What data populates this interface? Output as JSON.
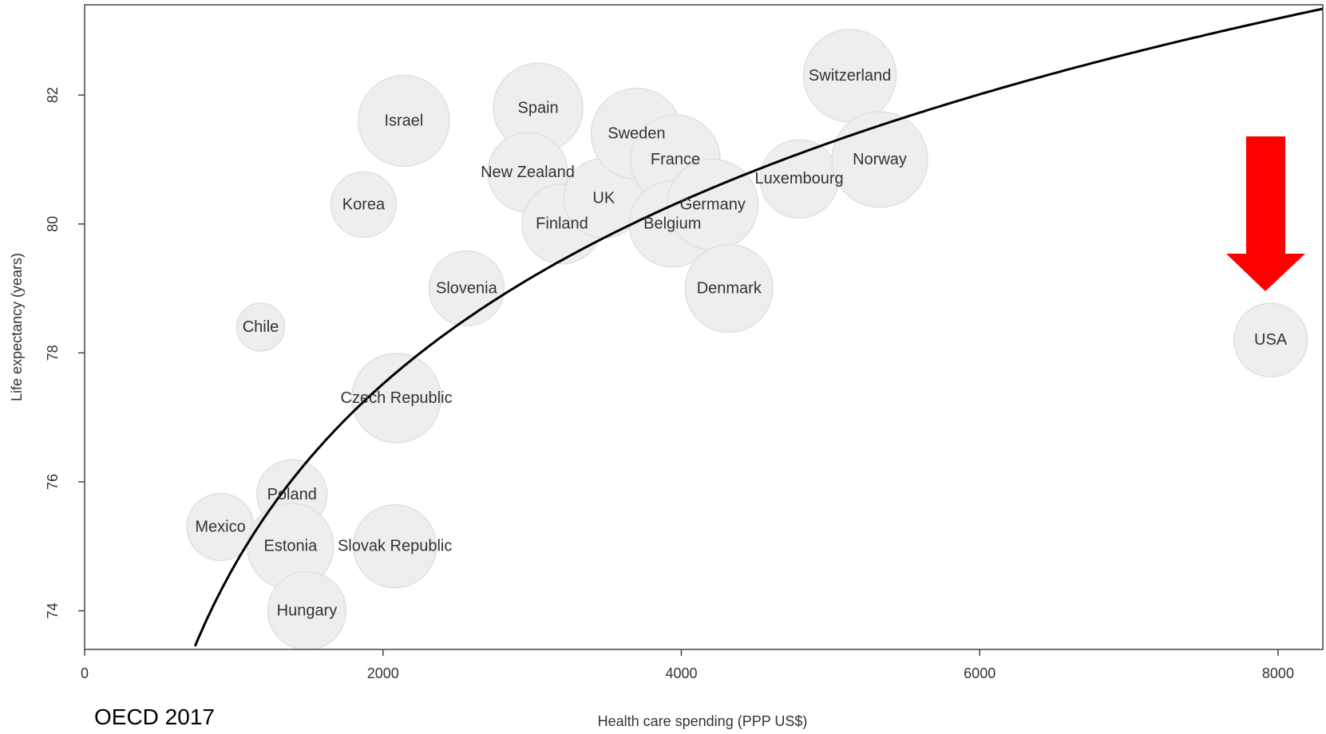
{
  "source_note": "OECD 2017",
  "chart_data": {
    "type": "scatter",
    "title": "",
    "xlabel": "Health care spending (PPP US$)",
    "ylabel": "Life expectancy (years)",
    "xlim": [
      0,
      8300
    ],
    "ylim": [
      73.4,
      83.4
    ],
    "xticks": [
      0,
      2000,
      4000,
      6000,
      8000
    ],
    "yticks": [
      74,
      76,
      78,
      80,
      82
    ],
    "grid": false,
    "legend": "none",
    "bubble_color": "#eeeeee",
    "highlight_color": "#ff0000",
    "points": [
      {
        "label": "Chile",
        "x": 1180,
        "y": 78.4,
        "r": 30
      },
      {
        "label": "Korea",
        "x": 1870,
        "y": 80.3,
        "r": 41
      },
      {
        "label": "Israel",
        "x": 2140,
        "y": 81.6,
        "r": 57
      },
      {
        "label": "Slovenia",
        "x": 2560,
        "y": 79.0,
        "r": 47
      },
      {
        "label": "Czech Republic",
        "x": 2090,
        "y": 77.3,
        "r": 56
      },
      {
        "label": "Mexico",
        "x": 910,
        "y": 75.3,
        "r": 42
      },
      {
        "label": "Poland",
        "x": 1390,
        "y": 75.8,
        "r": 44
      },
      {
        "label": "Estonia",
        "x": 1380,
        "y": 75.0,
        "r": 54
      },
      {
        "label": "Slovak Republic",
        "x": 2080,
        "y": 75.0,
        "r": 52
      },
      {
        "label": "Hungary",
        "x": 1490,
        "y": 74.0,
        "r": 49
      },
      {
        "label": "Spain",
        "x": 3040,
        "y": 81.8,
        "r": 56
      },
      {
        "label": "New Zealand",
        "x": 2970,
        "y": 80.8,
        "r": 50
      },
      {
        "label": "Finland",
        "x": 3200,
        "y": 80.0,
        "r": 50
      },
      {
        "label": "UK",
        "x": 3480,
        "y": 80.4,
        "r": 50
      },
      {
        "label": "Sweden",
        "x": 3700,
        "y": 81.4,
        "r": 57
      },
      {
        "label": "France",
        "x": 3960,
        "y": 81.0,
        "r": 56
      },
      {
        "label": "Belgium",
        "x": 3940,
        "y": 80.0,
        "r": 54
      },
      {
        "label": "Germany",
        "x": 4210,
        "y": 80.3,
        "r": 57
      },
      {
        "label": "Denmark",
        "x": 4320,
        "y": 79.0,
        "r": 55
      },
      {
        "label": "Luxembourg",
        "x": 4790,
        "y": 80.7,
        "r": 49
      },
      {
        "label": "Switzerland",
        "x": 5130,
        "y": 82.3,
        "r": 58
      },
      {
        "label": "Norway",
        "x": 5330,
        "y": 81.0,
        "r": 60
      },
      {
        "label": "USA",
        "x": 7950,
        "y": 78.2,
        "r": 46,
        "highlight": true
      }
    ],
    "trend_line": {
      "shape": "logarithmic",
      "a": 46.43,
      "b": 4.09
    },
    "annotation": {
      "shape": "down-arrow",
      "color": "#ff0000",
      "points_to": "USA"
    }
  }
}
